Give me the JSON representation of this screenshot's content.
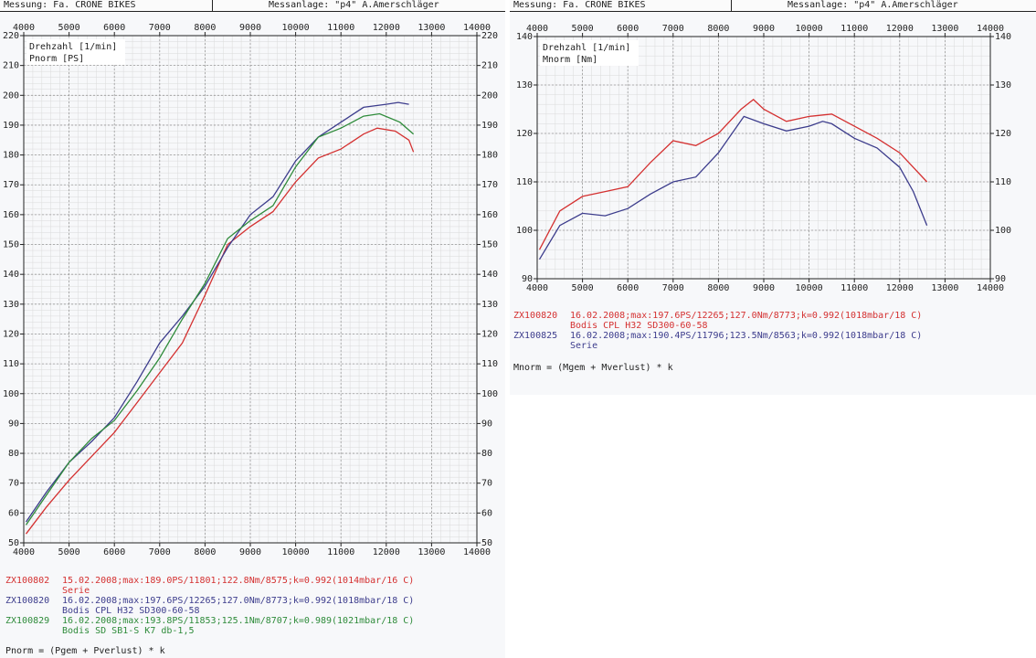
{
  "left": {
    "header": {
      "measurement": "Messung: Fa. CRONE BIKES",
      "facility": "Messanlage: \"p4\" A.Amerschläger"
    },
    "axis_labels": {
      "x": "Drehzahl [1/min]",
      "y": "Pnorm [PS]"
    },
    "formula": "Pnorm = (Pgem + Pverlust) * k",
    "legend": [
      {
        "id": "ZX100802",
        "line1": "15.02.2008;max:189.0PS/11801;122.8Nm/8575;k=0.992(1014mbar/16 C)",
        "line2": "Serie",
        "color": "#d43030"
      },
      {
        "id": "ZX100820",
        "line1": "16.02.2008;max:197.6PS/12265;127.0Nm/8773;k=0.992(1018mbar/18 C)",
        "line2": "Bodis CPL H32 SD300-60-58",
        "color": "#3c3c8c"
      },
      {
        "id": "ZX100829",
        "line1": "16.02.2008;max:193.8PS/11853;125.1Nm/8707;k=0.989(1021mbar/18 C)",
        "line2": "Bodis SD SB1-S K7 db-1,5",
        "color": "#2e8b3a"
      }
    ]
  },
  "right": {
    "header": {
      "measurement": "Messung: Fa. CRONE BIKES",
      "facility": "Messanlage: \"p4\" A.Amerschläger"
    },
    "axis_labels": {
      "x": "Drehzahl [1/min]",
      "y": "Mnorm [Nm]"
    },
    "formula": "Mnorm = (Mgem + Mverlust) * k",
    "legend": [
      {
        "id": "ZX100820",
        "line1": "16.02.2008;max:197.6PS/12265;127.0Nm/8773;k=0.992(1018mbar/18 C)",
        "line2": "Bodis CPL H32 SD300-60-58",
        "color": "#d43030"
      },
      {
        "id": "ZX100825",
        "line1": "16.02.2008;max:190.4PS/11796;123.5Nm/8563;k=0.992(1018mbar/18 C)",
        "line2": "Serie",
        "color": "#3c3c8c"
      }
    ]
  },
  "chart_data": [
    {
      "type": "line",
      "xlabel": "Drehzahl [1/min]",
      "ylabel": "Pnorm [PS]",
      "xlim": [
        4000,
        14000
      ],
      "ylim": [
        50,
        220
      ],
      "grid": true,
      "series": [
        {
          "name": "ZX100802",
          "color": "#d43030",
          "x": [
            4050,
            4500,
            5000,
            5500,
            6000,
            6500,
            7000,
            7500,
            8000,
            8500,
            9000,
            9500,
            10000,
            10500,
            11000,
            11500,
            11801,
            12200,
            12500,
            12600
          ],
          "y": [
            53,
            62,
            71,
            79,
            87,
            97,
            107,
            117,
            133,
            150,
            156,
            161,
            171,
            179,
            182,
            187,
            189,
            188,
            185,
            181
          ]
        },
        {
          "name": "ZX100820",
          "color": "#3c3c8c",
          "x": [
            4050,
            4500,
            5000,
            5500,
            6000,
            6500,
            7000,
            7500,
            8000,
            8500,
            9000,
            9500,
            10000,
            10500,
            11000,
            11500,
            12000,
            12265,
            12500
          ],
          "y": [
            57,
            67,
            77,
            84,
            92,
            104,
            117,
            126,
            136,
            149,
            160,
            166,
            178,
            186,
            191,
            196,
            197,
            197.6,
            197
          ]
        },
        {
          "name": "ZX100829",
          "color": "#2e8b3a",
          "x": [
            4050,
            4500,
            5000,
            5500,
            6000,
            6500,
            7000,
            7500,
            8000,
            8500,
            9000,
            9500,
            10000,
            10500,
            11000,
            11500,
            11853,
            12300,
            12600
          ],
          "y": [
            56,
            66,
            77,
            85,
            91,
            101,
            112,
            125,
            137,
            152,
            158,
            163,
            176,
            186,
            189,
            193,
            193.8,
            191,
            187
          ]
        }
      ]
    },
    {
      "type": "line",
      "xlabel": "Drehzahl [1/min]",
      "ylabel": "Mnorm [Nm]",
      "xlim": [
        4000,
        14000
      ],
      "ylim": [
        90,
        140
      ],
      "grid": true,
      "series": [
        {
          "name": "ZX100820",
          "color": "#d43030",
          "x": [
            4050,
            4500,
            5000,
            5500,
            6000,
            6500,
            7000,
            7500,
            8000,
            8500,
            8773,
            9000,
            9500,
            10000,
            10500,
            11000,
            11500,
            12000,
            12600
          ],
          "y": [
            96,
            104,
            107,
            108,
            109,
            114,
            118.5,
            117.5,
            120,
            125,
            127,
            125,
            122.5,
            123.5,
            124,
            121.5,
            119,
            116,
            110
          ]
        },
        {
          "name": "ZX100825",
          "color": "#3c3c8c",
          "x": [
            4050,
            4500,
            5000,
            5500,
            6000,
            6500,
            7000,
            7500,
            8000,
            8563,
            9000,
            9500,
            10000,
            10300,
            10500,
            11000,
            11500,
            12000,
            12300,
            12600
          ],
          "y": [
            94,
            101,
            103.5,
            103,
            104.5,
            107.5,
            110,
            111,
            116,
            123.5,
            122,
            120.5,
            121.5,
            122.5,
            122,
            119,
            117,
            113,
            108,
            101
          ]
        }
      ]
    }
  ]
}
